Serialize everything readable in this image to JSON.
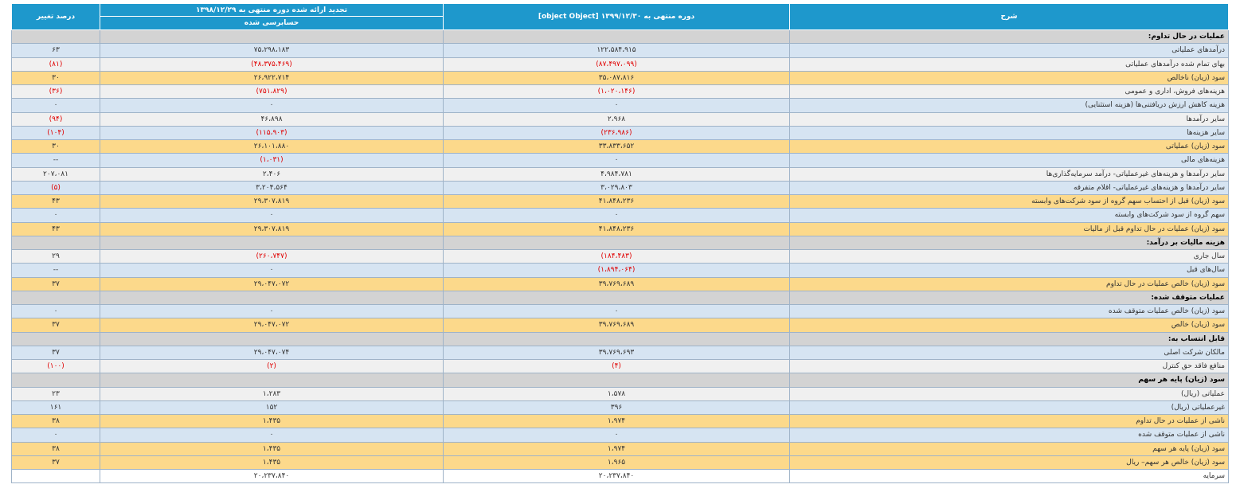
{
  "headers": {
    "description": "شرح",
    "current": "دوره منتهی به ۱۳۹۹/۱۲/۳۰ [object Object]",
    "previous": "تجدید ارائه شده دوره منتهی به ۱۳۹۸/۱۲/۲۹",
    "previous_sub": "حسابرسی شده",
    "change": "درصد تغییر"
  },
  "colors": {
    "header": "#1e98cc",
    "section": "#d3d3d3",
    "row_blue": "#d6e4f2",
    "row_grey": "#f0f0f0",
    "row_gold": "#fcd98b",
    "negative": "#e00000"
  },
  "rows": [
    {
      "kind": "section",
      "desc": "عملیات در حال تداوم:",
      "cur": "",
      "prev": "",
      "pct": ""
    },
    {
      "kind": "blue",
      "desc": "درآمدهای عملیاتی",
      "cur": "۱۲۲،۵۸۴،۹۱۵",
      "prev": "۷۵،۲۹۸،۱۸۳",
      "pct": "۶۳"
    },
    {
      "kind": "grey",
      "desc": "بهای تمام شده درآمدهای عملیاتی",
      "cur": "(۸۷،۴۹۷،۰۹۹)",
      "prev": "(۴۸،۳۷۵،۴۶۹)",
      "pct": "(۸۱)",
      "cur_neg": true,
      "prev_neg": true,
      "pct_neg": true
    },
    {
      "kind": "gold",
      "desc": "سود (زیان) ناخالص",
      "cur": "۳۵،۰۸۷،۸۱۶",
      "prev": "۲۶،۹۲۲،۷۱۴",
      "pct": "۳۰"
    },
    {
      "kind": "grey",
      "desc": "هزینه‌های فروش، اداری و عمومی",
      "cur": "(۱،۰۲۰،۱۴۶)",
      "prev": "(۷۵۱،۸۲۹)",
      "pct": "(۳۶)",
      "cur_neg": true,
      "prev_neg": true,
      "pct_neg": true
    },
    {
      "kind": "blue",
      "desc": "هزینه کاهش ارزش دریافتنی‌ها (هزینه استثنایی)",
      "cur": "۰",
      "prev": "۰",
      "pct": "۰"
    },
    {
      "kind": "grey",
      "desc": "سایر درآمدها",
      "cur": "۲،۹۶۸",
      "prev": "۴۶،۸۹۸",
      "pct": "(۹۴)",
      "pct_neg": true
    },
    {
      "kind": "blue",
      "desc": "سایر هزینه‌ها",
      "cur": "(۲۳۶،۹۸۶)",
      "prev": "(۱۱۵،۹۰۳)",
      "pct": "(۱۰۴)",
      "cur_neg": true,
      "prev_neg": true,
      "pct_neg": true
    },
    {
      "kind": "gold",
      "desc": "سود (زیان) عملیاتی",
      "cur": "۳۳،۸۳۳،۶۵۲",
      "prev": "۲۶،۱۰۱،۸۸۰",
      "pct": "۳۰"
    },
    {
      "kind": "blue",
      "desc": "هزینه‌های مالی",
      "cur": "۰",
      "prev": "(۱،۰۳۱)",
      "pct": "--",
      "prev_neg": true
    },
    {
      "kind": "grey",
      "desc": "سایر درآمدها و هزینه‌های غیرعملیاتی- درآمد سرمایه‌گذاری‌ها",
      "cur": "۴،۹۸۴،۷۸۱",
      "prev": "۲،۴۰۶",
      "pct": "۲۰۷،۰۸۱"
    },
    {
      "kind": "blue",
      "desc": "سایر درآمدها و هزینه‌های غیرعملیاتی- اقلام متفرقه",
      "cur": "۳،۰۲۹،۸۰۳",
      "prev": "۳،۲۰۴،۵۶۴",
      "pct": "(۵)",
      "pct_neg": true
    },
    {
      "kind": "gold",
      "desc": "سود (زیان) قبل از احتساب سهم گروه از سود شرکت‌های وابسته",
      "cur": "۴۱،۸۴۸،۲۳۶",
      "prev": "۲۹،۳۰۷،۸۱۹",
      "pct": "۴۳"
    },
    {
      "kind": "blue",
      "desc": "سهم گروه از سود شرکت‌های وابسته",
      "cur": "۰",
      "prev": "۰",
      "pct": "۰"
    },
    {
      "kind": "gold",
      "desc": "سود (زیان) عملیات در حال تداوم قبل از مالیات",
      "cur": "۴۱،۸۴۸،۲۳۶",
      "prev": "۲۹،۳۰۷،۸۱۹",
      "pct": "۴۳"
    },
    {
      "kind": "section",
      "desc": "هزینه مالیات بر درآمد:",
      "cur": "",
      "prev": "",
      "pct": ""
    },
    {
      "kind": "grey",
      "desc": "سال جاری",
      "cur": "(۱۸۴،۴۸۳)",
      "prev": "(۲۶۰،۷۴۷)",
      "pct": "۲۹",
      "cur_neg": true,
      "prev_neg": true
    },
    {
      "kind": "blue",
      "desc": "سال‌های قبل",
      "cur": "(۱،۸۹۴،۰۶۴)",
      "prev": "۰",
      "pct": "--",
      "cur_neg": true
    },
    {
      "kind": "gold",
      "desc": "سود (زیان) خالص عملیات در حال تداوم",
      "cur": "۳۹،۷۶۹،۶۸۹",
      "prev": "۲۹،۰۴۷،۰۷۲",
      "pct": "۳۷"
    },
    {
      "kind": "section",
      "desc": "عملیات متوقف شده:",
      "cur": "",
      "prev": "",
      "pct": ""
    },
    {
      "kind": "blue",
      "desc": "سود (زیان) خالص عملیات متوقف شده",
      "cur": "۰",
      "prev": "۰",
      "pct": "۰"
    },
    {
      "kind": "gold",
      "desc": "سود (زیان) خالص",
      "cur": "۳۹،۷۶۹،۶۸۹",
      "prev": "۲۹،۰۴۷،۰۷۲",
      "pct": "۳۷"
    },
    {
      "kind": "section",
      "desc": "قابل انتساب به:",
      "cur": "",
      "prev": "",
      "pct": ""
    },
    {
      "kind": "blue",
      "desc": "مالکان شرکت اصلی",
      "cur": "۳۹،۷۶۹،۶۹۳",
      "prev": "۲۹،۰۴۷،۰۷۴",
      "pct": "۳۷"
    },
    {
      "kind": "grey",
      "desc": "منافع فاقد حق کنترل",
      "cur": "(۴)",
      "prev": "(۲)",
      "pct": "(۱۰۰)",
      "cur_neg": true,
      "prev_neg": true,
      "pct_neg": true
    },
    {
      "kind": "section",
      "desc": "سود (زیان) پایه هر سهم",
      "cur": "",
      "prev": "",
      "pct": ""
    },
    {
      "kind": "grey",
      "desc": "عملیاتی (ریال)",
      "cur": "۱،۵۷۸",
      "prev": "۱،۲۸۳",
      "pct": "۲۳"
    },
    {
      "kind": "blue",
      "desc": "غیرعملیاتی (ریال)",
      "cur": "۳۹۶",
      "prev": "۱۵۲",
      "pct": "۱۶۱"
    },
    {
      "kind": "gold",
      "desc": "ناشی از عملیات در حال تداوم",
      "cur": "۱،۹۷۴",
      "prev": "۱،۴۳۵",
      "pct": "۳۸"
    },
    {
      "kind": "blue",
      "desc": "ناشی از عملیات متوقف شده",
      "cur": "۰",
      "prev": "۰",
      "pct": "۰"
    },
    {
      "kind": "gold",
      "desc": "سود (زیان) پایه هر سهم",
      "cur": "۱،۹۷۴",
      "prev": "۱،۴۳۵",
      "pct": "۳۸"
    },
    {
      "kind": "gold",
      "desc": "سود (زیان) خالص هر سهم– ریال",
      "cur": "۱،۹۶۵",
      "prev": "۱،۴۳۵",
      "pct": "۳۷"
    },
    {
      "kind": "white",
      "desc": "سرمایه",
      "cur": "۲۰،۲۳۷،۸۴۰",
      "prev": "۲۰،۲۳۷،۸۴۰",
      "pct": ""
    }
  ]
}
